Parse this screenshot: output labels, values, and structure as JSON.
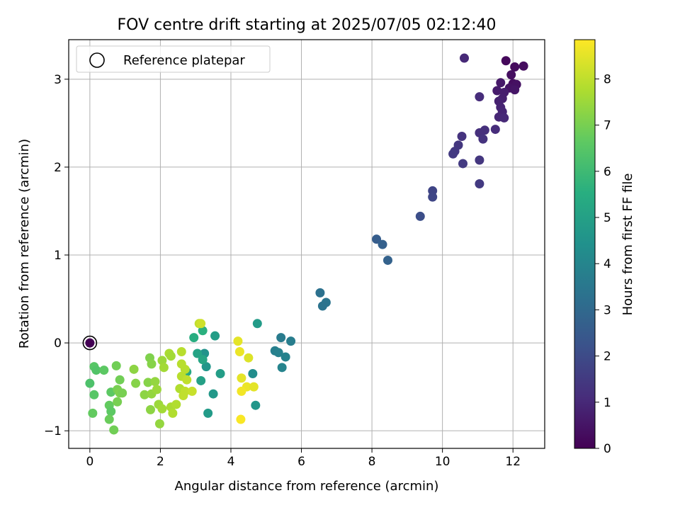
{
  "chart_data": {
    "type": "scatter",
    "title": "FOV centre drift starting at 2025/07/05 02:12:40",
    "xlabel": "Angular distance from reference (arcmin)",
    "ylabel": "Rotation from reference (arcmin)",
    "xlim": [
      -0.6,
      12.9
    ],
    "ylim": [
      -1.2,
      3.45
    ],
    "xticks": [
      "0",
      "2",
      "4",
      "6",
      "8",
      "10",
      "12"
    ],
    "yticks": [
      "−1",
      "0",
      "1",
      "2",
      "3"
    ],
    "grid": true,
    "legend": {
      "placement": "top-left",
      "label": "Reference platepar"
    },
    "reference_point": {
      "x": 0,
      "y": 0
    },
    "colorbar": {
      "label": "Hours from first FF file",
      "colormap": "viridis",
      "range": [
        0,
        8.85
      ],
      "ticks": [
        "0",
        "1",
        "2",
        "3",
        "4",
        "5",
        "6",
        "7",
        "8"
      ]
    },
    "points": [
      {
        "x": 0.0,
        "y": 0.0,
        "c": 0.0
      },
      {
        "x": 11.8,
        "y": 3.21,
        "c": 0.2
      },
      {
        "x": 12.3,
        "y": 3.15,
        "c": 0.3
      },
      {
        "x": 12.05,
        "y": 3.14,
        "c": 0.25
      },
      {
        "x": 11.95,
        "y": 3.05,
        "c": 0.35
      },
      {
        "x": 12.0,
        "y": 2.95,
        "c": 0.3
      },
      {
        "x": 12.1,
        "y": 2.94,
        "c": 0.4
      },
      {
        "x": 11.9,
        "y": 2.9,
        "c": 0.45
      },
      {
        "x": 12.05,
        "y": 2.88,
        "c": 0.5
      },
      {
        "x": 11.65,
        "y": 2.96,
        "c": 0.6
      },
      {
        "x": 11.55,
        "y": 2.87,
        "c": 0.65
      },
      {
        "x": 11.75,
        "y": 2.85,
        "c": 0.7
      },
      {
        "x": 11.7,
        "y": 2.78,
        "c": 0.75
      },
      {
        "x": 11.6,
        "y": 2.75,
        "c": 0.8
      },
      {
        "x": 11.65,
        "y": 2.68,
        "c": 0.85
      },
      {
        "x": 11.7,
        "y": 2.63,
        "c": 0.9
      },
      {
        "x": 11.6,
        "y": 2.57,
        "c": 0.95
      },
      {
        "x": 11.75,
        "y": 2.56,
        "c": 1.0
      },
      {
        "x": 10.62,
        "y": 3.24,
        "c": 1.0
      },
      {
        "x": 11.05,
        "y": 2.8,
        "c": 1.1
      },
      {
        "x": 11.5,
        "y": 2.43,
        "c": 1.1
      },
      {
        "x": 11.2,
        "y": 2.42,
        "c": 1.2
      },
      {
        "x": 11.05,
        "y": 2.39,
        "c": 1.2
      },
      {
        "x": 11.15,
        "y": 2.32,
        "c": 1.3
      },
      {
        "x": 10.55,
        "y": 2.35,
        "c": 1.3
      },
      {
        "x": 10.45,
        "y": 2.25,
        "c": 1.4
      },
      {
        "x": 10.35,
        "y": 2.18,
        "c": 1.45
      },
      {
        "x": 10.3,
        "y": 2.15,
        "c": 1.5
      },
      {
        "x": 11.05,
        "y": 2.08,
        "c": 1.4
      },
      {
        "x": 10.58,
        "y": 2.04,
        "c": 1.5
      },
      {
        "x": 11.05,
        "y": 1.81,
        "c": 1.5
      },
      {
        "x": 9.72,
        "y": 1.73,
        "c": 1.8
      },
      {
        "x": 9.72,
        "y": 1.66,
        "c": 1.85
      },
      {
        "x": 9.37,
        "y": 1.44,
        "c": 2.1
      },
      {
        "x": 8.13,
        "y": 1.18,
        "c": 2.6
      },
      {
        "x": 8.3,
        "y": 1.12,
        "c": 2.7
      },
      {
        "x": 8.45,
        "y": 0.94,
        "c": 2.75
      },
      {
        "x": 6.53,
        "y": 0.57,
        "c": 3.3
      },
      {
        "x": 6.7,
        "y": 0.46,
        "c": 3.4
      },
      {
        "x": 6.6,
        "y": 0.42,
        "c": 3.35
      },
      {
        "x": 5.42,
        "y": 0.06,
        "c": 3.65
      },
      {
        "x": 5.7,
        "y": 0.02,
        "c": 3.7
      },
      {
        "x": 5.25,
        "y": -0.09,
        "c": 3.8
      },
      {
        "x": 5.35,
        "y": -0.11,
        "c": 3.85
      },
      {
        "x": 5.55,
        "y": -0.16,
        "c": 3.9
      },
      {
        "x": 5.45,
        "y": -0.28,
        "c": 3.95
      },
      {
        "x": 4.62,
        "y": -0.35,
        "c": 4.3
      },
      {
        "x": 4.7,
        "y": -0.71,
        "c": 4.6
      },
      {
        "x": 4.75,
        "y": 0.22,
        "c": 4.8
      },
      {
        "x": 3.55,
        "y": 0.08,
        "c": 4.9
      },
      {
        "x": 3.25,
        "y": -0.12,
        "c": 4.5
      },
      {
        "x": 3.3,
        "y": -0.27,
        "c": 4.6
      },
      {
        "x": 3.7,
        "y": -0.35,
        "c": 4.9
      },
      {
        "x": 3.5,
        "y": -0.58,
        "c": 4.7
      },
      {
        "x": 3.35,
        "y": -0.8,
        "c": 4.8
      },
      {
        "x": 3.15,
        "y": -0.43,
        "c": 5.0
      },
      {
        "x": 3.05,
        "y": -0.12,
        "c": 5.1
      },
      {
        "x": 3.2,
        "y": -0.19,
        "c": 5.2
      },
      {
        "x": 2.75,
        "y": -0.33,
        "c": 5.3
      },
      {
        "x": 2.95,
        "y": 0.06,
        "c": 5.5
      },
      {
        "x": 3.2,
        "y": 0.14,
        "c": 5.6
      },
      {
        "x": 3.1,
        "y": 0.22,
        "c": 8.0
      },
      {
        "x": 3.15,
        "y": 0.22,
        "c": 8.2
      },
      {
        "x": 4.2,
        "y": 0.02,
        "c": 8.5
      },
      {
        "x": 4.25,
        "y": -0.1,
        "c": 8.6
      },
      {
        "x": 4.5,
        "y": -0.17,
        "c": 8.4
      },
      {
        "x": 4.3,
        "y": -0.4,
        "c": 8.5
      },
      {
        "x": 4.45,
        "y": -0.5,
        "c": 8.6
      },
      {
        "x": 4.3,
        "y": -0.55,
        "c": 8.7
      },
      {
        "x": 4.65,
        "y": -0.5,
        "c": 8.5
      },
      {
        "x": 4.28,
        "y": -0.87,
        "c": 8.8
      },
      {
        "x": 0.0,
        "y": -0.46,
        "c": 6.3
      },
      {
        "x": 0.12,
        "y": -0.27,
        "c": 6.5
      },
      {
        "x": 0.18,
        "y": -0.31,
        "c": 6.4
      },
      {
        "x": 0.4,
        "y": -0.31,
        "c": 6.6
      },
      {
        "x": 0.12,
        "y": -0.59,
        "c": 6.5
      },
      {
        "x": 0.08,
        "y": -0.8,
        "c": 6.7
      },
      {
        "x": 0.6,
        "y": -0.56,
        "c": 6.6
      },
      {
        "x": 0.55,
        "y": -0.71,
        "c": 6.7
      },
      {
        "x": 0.6,
        "y": -0.78,
        "c": 6.6
      },
      {
        "x": 0.55,
        "y": -0.87,
        "c": 6.8
      },
      {
        "x": 0.68,
        "y": -0.99,
        "c": 6.9
      },
      {
        "x": 0.78,
        "y": -0.53,
        "c": 7.0
      },
      {
        "x": 0.85,
        "y": -0.57,
        "c": 7.1
      },
      {
        "x": 0.92,
        "y": -0.57,
        "c": 7.0
      },
      {
        "x": 0.75,
        "y": -0.26,
        "c": 6.9
      },
      {
        "x": 0.85,
        "y": -0.42,
        "c": 6.9
      },
      {
        "x": 0.78,
        "y": -0.67,
        "c": 7.0
      },
      {
        "x": 1.25,
        "y": -0.3,
        "c": 7.3
      },
      {
        "x": 1.3,
        "y": -0.46,
        "c": 7.2
      },
      {
        "x": 1.55,
        "y": -0.59,
        "c": 7.3
      },
      {
        "x": 1.65,
        "y": -0.45,
        "c": 7.2
      },
      {
        "x": 1.7,
        "y": -0.17,
        "c": 7.1
      },
      {
        "x": 1.75,
        "y": -0.24,
        "c": 7.2
      },
      {
        "x": 1.75,
        "y": -0.58,
        "c": 7.4
      },
      {
        "x": 1.72,
        "y": -0.76,
        "c": 7.3
      },
      {
        "x": 1.85,
        "y": -0.44,
        "c": 7.4
      },
      {
        "x": 1.9,
        "y": -0.53,
        "c": 7.5
      },
      {
        "x": 1.95,
        "y": -0.7,
        "c": 7.5
      },
      {
        "x": 1.98,
        "y": -0.92,
        "c": 7.4
      },
      {
        "x": 2.05,
        "y": -0.75,
        "c": 7.6
      },
      {
        "x": 2.05,
        "y": -0.2,
        "c": 7.5
      },
      {
        "x": 2.1,
        "y": -0.28,
        "c": 7.6
      },
      {
        "x": 2.25,
        "y": -0.12,
        "c": 7.7
      },
      {
        "x": 2.3,
        "y": -0.15,
        "c": 7.6
      },
      {
        "x": 2.3,
        "y": -0.73,
        "c": 7.7
      },
      {
        "x": 2.35,
        "y": -0.8,
        "c": 7.8
      },
      {
        "x": 2.45,
        "y": -0.7,
        "c": 7.8
      },
      {
        "x": 2.55,
        "y": -0.52,
        "c": 7.8
      },
      {
        "x": 2.6,
        "y": -0.1,
        "c": 7.9
      },
      {
        "x": 2.6,
        "y": -0.24,
        "c": 7.9
      },
      {
        "x": 2.6,
        "y": -0.38,
        "c": 7.9
      },
      {
        "x": 2.7,
        "y": -0.55,
        "c": 8.0
      },
      {
        "x": 2.65,
        "y": -0.6,
        "c": 8.0
      },
      {
        "x": 2.7,
        "y": -0.3,
        "c": 7.9
      },
      {
        "x": 2.75,
        "y": -0.42,
        "c": 8.0
      },
      {
        "x": 2.9,
        "y": -0.55,
        "c": 8.1
      }
    ]
  }
}
